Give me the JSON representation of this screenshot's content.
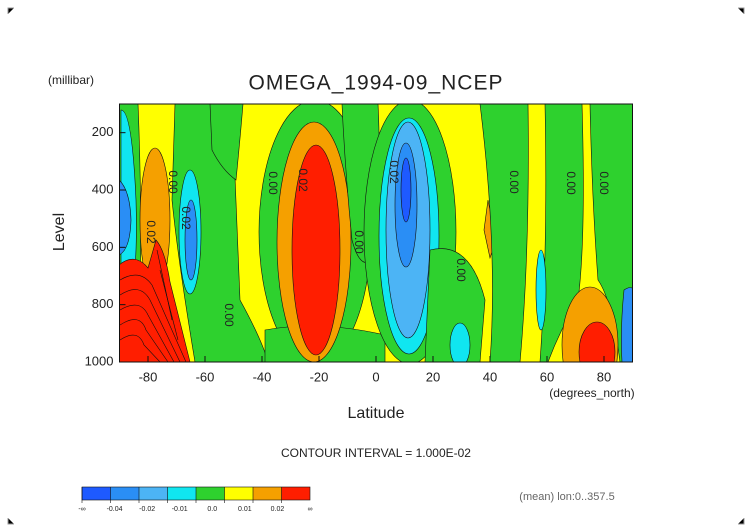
{
  "chart_data": {
    "type": "contour",
    "title": "OMEGA_1994-09_NCEP",
    "y_unit_label": "(millibar)",
    "y_label": "Level",
    "x_label": "Latitude",
    "x_unit_label": "(degrees_north)",
    "contour_interval_text": "CONTOUR INTERVAL = 1.000E-02",
    "footnote": "(mean) lon:0..357.5",
    "xlim": [
      -90,
      90
    ],
    "xticks": [
      -80,
      -60,
      -40,
      -20,
      0,
      20,
      40,
      60,
      80
    ],
    "ylim": [
      100,
      1000
    ],
    "y_inverted": true,
    "yticks": [
      200,
      400,
      600,
      800,
      1000
    ],
    "contour_labels": [
      "0.02",
      "0.00",
      "0.02",
      "0.00",
      "0.02",
      "0.00",
      "0.02",
      "0.00",
      "0.00",
      "0.00",
      "0.00",
      "0.00"
    ],
    "colorbar": {
      "colors": [
        "#1e5aff",
        "#2a8ef5",
        "#4cb4f5",
        "#10e6f0",
        "#2ed12e",
        "#ffff00",
        "#f5a000",
        "#ff1e00"
      ],
      "labels": [
        "-∞",
        "-0.04",
        "-0.02",
        "-0.01",
        "0.0",
        "0.01",
        "0.02",
        "∞"
      ]
    }
  }
}
